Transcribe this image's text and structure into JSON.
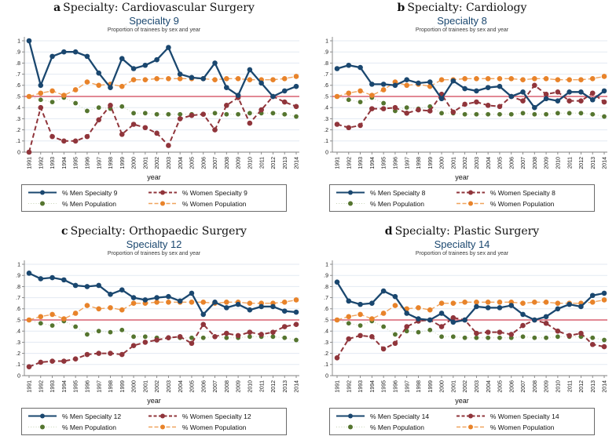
{
  "chart_data": [
    {
      "type": "line",
      "panel_letter": "a",
      "caption": "Specialty: Cardiovascular Surgery",
      "title": "Specialty 9",
      "subtitle": "Proportion of trainees by sex and year",
      "xlabel": "year",
      "x": [
        1991,
        1992,
        1993,
        1994,
        1995,
        1996,
        1997,
        1998,
        1999,
        2000,
        2001,
        2002,
        2003,
        2004,
        2005,
        2006,
        2007,
        2008,
        2009,
        2010,
        2011,
        2012,
        2013,
        2014
      ],
      "y_ticks": [
        "0",
        ".1",
        ".2",
        ".3",
        ".4",
        ".5",
        ".6",
        ".7",
        ".8",
        ".9",
        "1"
      ],
      "ylim": [
        0,
        1
      ],
      "grid": true,
      "legend_position": "below",
      "reference_line_y": 0.5,
      "reference_line_color": "#d96070",
      "series": [
        {
          "name": "% Men Specialty 9",
          "key": "men-specialty",
          "line_style": "solid",
          "color": "#1a476f",
          "line_color": "#1a476f",
          "marker": "circle",
          "values": [
            1.0,
            0.6,
            0.86,
            0.9,
            0.9,
            0.86,
            0.71,
            0.58,
            0.84,
            0.75,
            0.78,
            0.83,
            0.94,
            0.7,
            0.67,
            0.66,
            0.8,
            0.58,
            0.51,
            0.74,
            0.62,
            0.5,
            0.55,
            0.59
          ]
        },
        {
          "name": "% Women Specialty 9",
          "key": "women-specialty",
          "line_style": "dashed",
          "color": "#90353b",
          "line_color": "#90353b",
          "marker": "circle",
          "values": [
            0.0,
            0.4,
            0.14,
            0.1,
            0.1,
            0.14,
            0.29,
            0.42,
            0.16,
            0.25,
            0.22,
            0.17,
            0.06,
            0.3,
            0.33,
            0.34,
            0.2,
            0.42,
            0.49,
            0.26,
            0.38,
            0.5,
            0.45,
            0.41
          ]
        },
        {
          "name": "% Men Population",
          "key": "men-population",
          "line_style": "dotted",
          "color": "#55752f",
          "line_color": "#c6d3b5",
          "marker": "circle",
          "values": [
            0.5,
            0.47,
            0.45,
            0.49,
            0.44,
            0.37,
            0.4,
            0.39,
            0.41,
            0.35,
            0.35,
            0.34,
            0.34,
            0.34,
            0.34,
            0.34,
            0.35,
            0.34,
            0.34,
            0.35,
            0.35,
            0.35,
            0.34,
            0.32
          ]
        },
        {
          "name": "% Women Population",
          "key": "women-population",
          "line_style": "dashed",
          "color": "#e8832a",
          "line_color": "#f0a35d",
          "marker": "circle",
          "values": [
            0.5,
            0.53,
            0.55,
            0.51,
            0.56,
            0.63,
            0.6,
            0.61,
            0.59,
            0.65,
            0.65,
            0.66,
            0.66,
            0.66,
            0.66,
            0.66,
            0.65,
            0.66,
            0.66,
            0.65,
            0.65,
            0.65,
            0.66,
            0.68
          ]
        }
      ]
    },
    {
      "type": "line",
      "panel_letter": "b",
      "caption": "Specialty: Cardiology",
      "title": "Specialty 8",
      "subtitle": "Proportion of trainees by sex and year",
      "xlabel": "year",
      "x": [
        1991,
        1992,
        1993,
        1994,
        1995,
        1996,
        1997,
        1998,
        1999,
        2000,
        2001,
        2002,
        2003,
        2004,
        2005,
        2006,
        2007,
        2008,
        2009,
        2010,
        2011,
        2012,
        2013,
        2014
      ],
      "y_ticks": [
        "0",
        ".1",
        ".2",
        ".3",
        ".4",
        ".5",
        ".6",
        ".7",
        ".8",
        ".9",
        "1"
      ],
      "ylim": [
        0,
        1
      ],
      "grid": true,
      "legend_position": "below",
      "reference_line_y": 0.5,
      "reference_line_color": "#d96070",
      "series": [
        {
          "name": "% Men Specialty 8",
          "key": "men-specialty",
          "line_style": "solid",
          "color": "#1a476f",
          "line_color": "#1a476f",
          "marker": "circle",
          "values": [
            0.75,
            0.78,
            0.76,
            0.61,
            0.61,
            0.6,
            0.65,
            0.62,
            0.63,
            0.48,
            0.64,
            0.57,
            0.55,
            0.58,
            0.59,
            0.5,
            0.54,
            0.4,
            0.48,
            0.46,
            0.54,
            0.54,
            0.47,
            0.55
          ]
        },
        {
          "name": "% Women Specialty 8",
          "key": "women-specialty",
          "line_style": "dashed",
          "color": "#90353b",
          "line_color": "#90353b",
          "marker": "circle",
          "values": [
            0.25,
            0.22,
            0.24,
            0.39,
            0.39,
            0.4,
            0.35,
            0.38,
            0.37,
            0.52,
            0.36,
            0.43,
            0.45,
            0.42,
            0.41,
            0.5,
            0.46,
            0.6,
            0.52,
            0.54,
            0.46,
            0.46,
            0.53,
            0.45
          ]
        },
        {
          "name": "% Men Population",
          "key": "men-population",
          "line_style": "dotted",
          "color": "#55752f",
          "line_color": "#c6d3b5",
          "marker": "circle",
          "values": [
            0.5,
            0.47,
            0.45,
            0.49,
            0.44,
            0.37,
            0.4,
            0.39,
            0.41,
            0.35,
            0.35,
            0.34,
            0.34,
            0.34,
            0.34,
            0.34,
            0.35,
            0.34,
            0.34,
            0.35,
            0.35,
            0.35,
            0.34,
            0.32
          ]
        },
        {
          "name": "% Women Population",
          "key": "women-population",
          "line_style": "dashed",
          "color": "#e8832a",
          "line_color": "#f0a35d",
          "marker": "circle",
          "values": [
            0.5,
            0.53,
            0.55,
            0.51,
            0.56,
            0.63,
            0.6,
            0.61,
            0.59,
            0.65,
            0.65,
            0.66,
            0.66,
            0.66,
            0.66,
            0.66,
            0.65,
            0.66,
            0.66,
            0.65,
            0.65,
            0.65,
            0.66,
            0.68
          ]
        }
      ]
    },
    {
      "type": "line",
      "panel_letter": "c",
      "caption": "Specialty: Orthopaedic Surgery",
      "title": "Specialty 12",
      "subtitle": "Proportion of trainees by sex and year",
      "xlabel": "year",
      "x": [
        1991,
        1992,
        1993,
        1994,
        1995,
        1996,
        1997,
        1998,
        1999,
        2000,
        2001,
        2002,
        2003,
        2004,
        2005,
        2006,
        2007,
        2008,
        2009,
        2010,
        2011,
        2012,
        2013,
        2014
      ],
      "y_ticks": [
        "0",
        ".1",
        ".2",
        ".3",
        ".4",
        ".5",
        ".6",
        ".7",
        ".8",
        ".9",
        "1"
      ],
      "ylim": [
        0,
        1
      ],
      "grid": true,
      "legend_position": "below",
      "reference_line_y": 0.5,
      "reference_line_color": "#d96070",
      "series": [
        {
          "name": "% Men Specialty 12",
          "key": "men-specialty",
          "line_style": "solid",
          "color": "#1a476f",
          "line_color": "#1a476f",
          "marker": "circle",
          "values": [
            0.92,
            0.87,
            0.88,
            0.86,
            0.81,
            0.8,
            0.81,
            0.73,
            0.77,
            0.7,
            0.68,
            0.7,
            0.71,
            0.67,
            0.74,
            0.55,
            0.66,
            0.61,
            0.64,
            0.59,
            0.62,
            0.62,
            0.58,
            0.57
          ]
        },
        {
          "name": "% Women Specialty 12",
          "key": "women-specialty",
          "line_style": "dashed",
          "color": "#90353b",
          "line_color": "#90353b",
          "marker": "circle",
          "values": [
            0.08,
            0.12,
            0.13,
            0.13,
            0.15,
            0.19,
            0.2,
            0.2,
            0.19,
            0.27,
            0.3,
            0.32,
            0.34,
            0.35,
            0.29,
            0.46,
            0.35,
            0.38,
            0.36,
            0.39,
            0.37,
            0.39,
            0.44,
            0.46
          ]
        },
        {
          "name": "% Men Population",
          "key": "men-population",
          "line_style": "dotted",
          "color": "#55752f",
          "line_color": "#c6d3b5",
          "marker": "circle",
          "values": [
            0.5,
            0.47,
            0.45,
            0.49,
            0.44,
            0.37,
            0.4,
            0.39,
            0.41,
            0.35,
            0.35,
            0.34,
            0.34,
            0.34,
            0.34,
            0.34,
            0.35,
            0.34,
            0.34,
            0.35,
            0.35,
            0.35,
            0.34,
            0.32
          ]
        },
        {
          "name": "% Women Population",
          "key": "women-population",
          "line_style": "dashed",
          "color": "#e8832a",
          "line_color": "#f0a35d",
          "marker": "circle",
          "values": [
            0.5,
            0.53,
            0.55,
            0.51,
            0.56,
            0.63,
            0.6,
            0.61,
            0.59,
            0.65,
            0.65,
            0.66,
            0.66,
            0.66,
            0.66,
            0.66,
            0.65,
            0.66,
            0.66,
            0.65,
            0.65,
            0.65,
            0.66,
            0.68
          ]
        }
      ]
    },
    {
      "type": "line",
      "panel_letter": "d",
      "caption": "Specialty: Plastic Surgery",
      "title": "Specialty 14",
      "subtitle": "Proportion of trainees by sex and year",
      "xlabel": "year",
      "x": [
        1991,
        1992,
        1993,
        1994,
        1995,
        1996,
        1997,
        1998,
        1999,
        2000,
        2001,
        2002,
        2003,
        2004,
        2005,
        2006,
        2007,
        2008,
        2009,
        2010,
        2011,
        2012,
        2013,
        2014
      ],
      "y_ticks": [
        "0",
        ".1",
        ".2",
        ".3",
        ".4",
        ".5",
        ".6",
        ".7",
        ".8",
        ".9",
        "1"
      ],
      "ylim": [
        0,
        1
      ],
      "grid": true,
      "legend_position": "below",
      "reference_line_y": 0.5,
      "reference_line_color": "#d96070",
      "series": [
        {
          "name": "% Men Specialty 14",
          "key": "men-specialty",
          "line_style": "solid",
          "color": "#1a476f",
          "line_color": "#1a476f",
          "marker": "circle",
          "values": [
            0.84,
            0.67,
            0.64,
            0.65,
            0.76,
            0.71,
            0.56,
            0.51,
            0.5,
            0.56,
            0.48,
            0.5,
            0.62,
            0.61,
            0.61,
            0.63,
            0.55,
            0.5,
            0.53,
            0.6,
            0.64,
            0.62,
            0.72,
            0.74
          ]
        },
        {
          "name": "% Women Specialty 14",
          "key": "women-specialty",
          "line_style": "dashed",
          "color": "#90353b",
          "line_color": "#90353b",
          "marker": "circle",
          "values": [
            0.16,
            0.33,
            0.36,
            0.35,
            0.24,
            0.29,
            0.44,
            0.49,
            0.5,
            0.44,
            0.52,
            0.5,
            0.38,
            0.39,
            0.39,
            0.37,
            0.45,
            0.5,
            0.47,
            0.4,
            0.36,
            0.38,
            0.28,
            0.26
          ]
        },
        {
          "name": "% Men Population",
          "key": "men-population",
          "line_style": "dotted",
          "color": "#55752f",
          "line_color": "#c6d3b5",
          "marker": "circle",
          "values": [
            0.5,
            0.47,
            0.45,
            0.49,
            0.44,
            0.37,
            0.4,
            0.39,
            0.41,
            0.35,
            0.35,
            0.34,
            0.34,
            0.34,
            0.34,
            0.34,
            0.35,
            0.34,
            0.34,
            0.35,
            0.35,
            0.35,
            0.34,
            0.32
          ]
        },
        {
          "name": "% Women Population",
          "key": "women-population",
          "line_style": "dashed",
          "color": "#e8832a",
          "line_color": "#f0a35d",
          "marker": "circle",
          "values": [
            0.5,
            0.53,
            0.55,
            0.51,
            0.56,
            0.63,
            0.6,
            0.61,
            0.59,
            0.65,
            0.65,
            0.66,
            0.66,
            0.66,
            0.66,
            0.66,
            0.65,
            0.66,
            0.66,
            0.65,
            0.65,
            0.65,
            0.66,
            0.68
          ]
        }
      ]
    }
  ],
  "styles": {
    "navy": "#1a476f",
    "maroon": "#90353b",
    "green": "#55752f",
    "orange": "#e8832a",
    "refline": "#d96070",
    "gridline": "#e3eaf2",
    "axis": "#808080"
  }
}
